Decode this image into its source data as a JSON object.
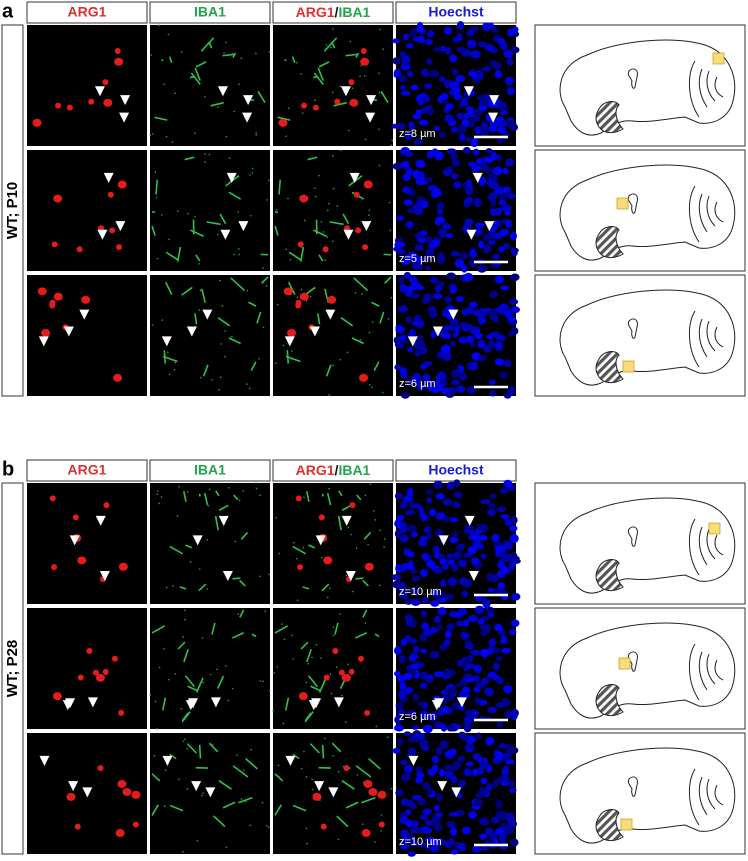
{
  "panels": [
    {
      "label": "a",
      "row_label": "WT; P10",
      "headers": [
        {
          "text": "ARG1"
        },
        {
          "text": "IBA1"
        },
        {
          "parts": [
            "ARG1",
            "/",
            "IBA1"
          ]
        },
        {
          "text": "Hoechst"
        }
      ],
      "z_labels": [
        "z=8 µm",
        "z=5 µm",
        "z=6 µm"
      ]
    },
    {
      "label": "b",
      "row_label": "WT; P28",
      "headers": [
        {
          "text": "ARG1"
        },
        {
          "text": "IBA1"
        },
        {
          "parts": [
            "ARG1",
            "/",
            "IBA1"
          ]
        },
        {
          "text": "Hoechst"
        }
      ],
      "z_labels": [
        "z=10 µm",
        "z=6 µm",
        "z=10 µm"
      ]
    }
  ]
}
